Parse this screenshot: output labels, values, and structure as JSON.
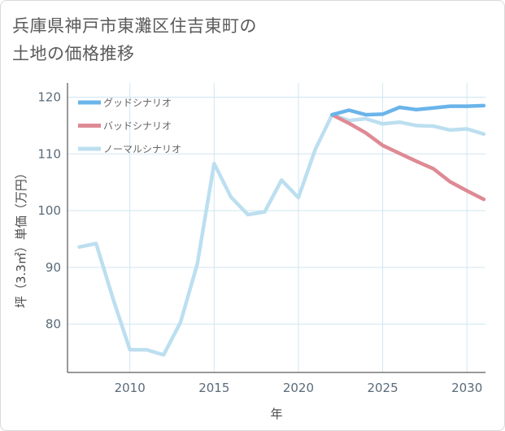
{
  "title": {
    "line1": "兵庫県神戸市東灘区住吉東町の",
    "line2": "土地の価格推移"
  },
  "colors": {
    "good": "#6ab4ea",
    "bad": "#de8a94",
    "normal": "#bcdff0",
    "grid": "#cfe6f2",
    "axis": "#333333"
  },
  "chart_data": {
    "type": "line",
    "title": "兵庫県神戸市東灘区住吉東町の土地の価格推移",
    "xlabel": "年",
    "ylabel": "坪（3.3㎡）単価（万円）",
    "xlim": [
      2006.3,
      2031.1
    ],
    "ylim": [
      71.5,
      122.5
    ],
    "x_ticks": [
      2010,
      2015,
      2020,
      2025,
      2030
    ],
    "y_ticks": [
      80,
      90,
      100,
      110,
      120
    ],
    "legend": [
      "グッドシナリオ",
      "バッドシナリオ",
      "ノーマルシナリオ"
    ],
    "series": [
      {
        "name": "ノーマルシナリオ",
        "key": "normal",
        "x": [
          2007,
          2008,
          2009,
          2010,
          2011,
          2012,
          2013,
          2014,
          2015,
          2016,
          2017,
          2018,
          2019,
          2020,
          2021,
          2022,
          2023,
          2024,
          2025,
          2026,
          2027,
          2028,
          2029,
          2030,
          2031
        ],
        "values": [
          93.6,
          94.2,
          84.5,
          75.5,
          75.5,
          74.6,
          80.3,
          90.6,
          108.3,
          102.4,
          99.3,
          99.8,
          105.4,
          102.3,
          110.8,
          116.9,
          115.9,
          116.2,
          115.3,
          115.6,
          115.0,
          114.9,
          114.2,
          114.4,
          113.5
        ]
      },
      {
        "name": "バッドシナリオ",
        "key": "bad",
        "x": [
          2022,
          2023,
          2024,
          2025,
          2026,
          2027,
          2028,
          2029,
          2030,
          2031
        ],
        "values": [
          116.9,
          115.4,
          113.7,
          111.5,
          110.1,
          108.7,
          107.4,
          105.1,
          103.5,
          102.0
        ]
      },
      {
        "name": "グッドシナリオ",
        "key": "good",
        "x": [
          2022,
          2023,
          2024,
          2025,
          2026,
          2027,
          2028,
          2029,
          2030,
          2031
        ],
        "values": [
          116.9,
          117.7,
          116.9,
          117.0,
          118.2,
          117.8,
          118.1,
          118.4,
          118.4,
          118.5
        ]
      }
    ]
  }
}
